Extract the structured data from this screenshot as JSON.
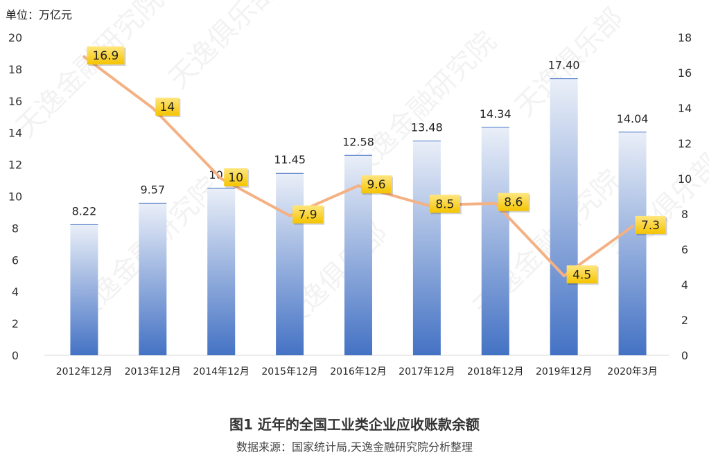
{
  "chart_data": {
    "type": "bar",
    "unit_label": "单位：万亿元",
    "categories": [
      "2012年12月",
      "2013年12月",
      "2014年12月",
      "2015年12月",
      "2016年12月",
      "2017年12月",
      "2018年12月",
      "2019年12月",
      "2020年3月"
    ],
    "series": [
      {
        "type": "bar",
        "axis": "left",
        "values": [
          8.22,
          9.57,
          10.5,
          11.45,
          12.58,
          13.48,
          14.34,
          17.4,
          14.04
        ],
        "labels": [
          "8.22",
          "9.57",
          "10.5",
          "11.45",
          "12.58",
          "13.48",
          "14.34",
          "17.40",
          "14.04"
        ],
        "color": "#4472c4"
      },
      {
        "type": "line",
        "axis": "right",
        "values": [
          16.9,
          14,
          10,
          7.9,
          9.6,
          8.5,
          8.6,
          4.5,
          7.3
        ],
        "labels": [
          "16.9",
          "14",
          "10",
          "7.9",
          "9.6",
          "8.5",
          "8.6",
          "4.5",
          "7.3"
        ],
        "color": "#f4b183"
      }
    ],
    "y_left": {
      "range": [
        0,
        20
      ],
      "ticks": [
        "0",
        "2",
        "4",
        "6",
        "8",
        "10",
        "12",
        "14",
        "16",
        "18",
        "20"
      ]
    },
    "y_right": {
      "range": [
        0,
        18
      ],
      "ticks": [
        "0",
        "2",
        "4",
        "6",
        "8",
        "10",
        "12",
        "14",
        "16",
        "18"
      ]
    },
    "grid": false,
    "legend": "none"
  },
  "caption": {
    "title": "图1 近年的全国工业类企业应收账款余额",
    "source": "数据来源：国家统计局,天逸金融研究院分析整理"
  },
  "watermark": "天逸金融研究院 天逸俱乐部"
}
